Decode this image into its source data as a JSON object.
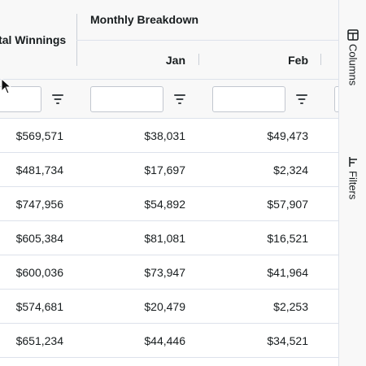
{
  "header": {
    "group_title": "Monthly Breakdown",
    "total_title": "Total Winnings",
    "col_jan": "Jan",
    "col_feb": "Feb"
  },
  "rows": [
    {
      "total": "$569,571",
      "jan": "$38,031",
      "feb": "$49,473"
    },
    {
      "total": "$481,734",
      "jan": "$17,697",
      "feb": "$2,324"
    },
    {
      "total": "$747,956",
      "jan": "$54,892",
      "feb": "$57,907"
    },
    {
      "total": "$605,384",
      "jan": "$81,081",
      "feb": "$16,521"
    },
    {
      "total": "$600,036",
      "jan": "$73,947",
      "feb": "$41,964"
    },
    {
      "total": "$574,681",
      "jan": "$20,479",
      "feb": "$2,253"
    },
    {
      "total": "$651,234",
      "jan": "$44,446",
      "feb": "$34,521"
    }
  ],
  "sidebar": {
    "columns_label": "Columns",
    "filters_label": "Filters"
  },
  "icons": {
    "filter": "filter-icon",
    "columns": "columns-icon",
    "filters": "filters-icon",
    "cursor": "mouse-cursor-icon"
  },
  "colors": {
    "header_bg": "#f8f8f8",
    "border": "#dde2eb",
    "text": "#181d1f"
  }
}
